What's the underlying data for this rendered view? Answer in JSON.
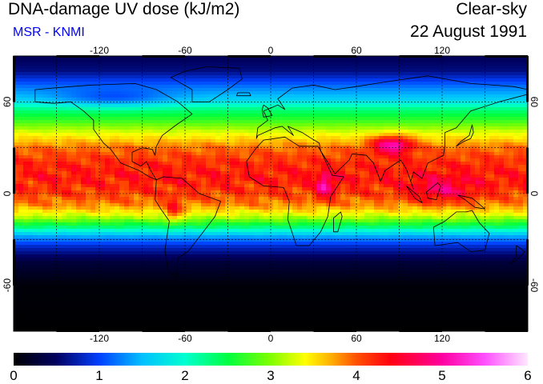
{
  "header": {
    "title": "DNA-damage UV dose (kJ/m2)",
    "subtitle": "MSR - KNMI",
    "condition": "Clear-sky",
    "date": "22 August 1991"
  },
  "colors": {
    "subtitle": "#0000ff",
    "frame": "#000000",
    "graticule": "#000000",
    "coastline": "#000000"
  },
  "map": {
    "projection": "equirectangular",
    "lon_range": [
      -180,
      180
    ],
    "lat_range": [
      -90,
      90
    ],
    "graticule_lons": [
      -150,
      -120,
      -90,
      -60,
      -30,
      0,
      30,
      60,
      90,
      120,
      150
    ],
    "graticule_lats": [
      -30,
      0,
      30,
      60
    ],
    "lon_tick_labels": [
      "-120",
      "-60",
      "0",
      "60",
      "120"
    ],
    "lon_tick_values": [
      -120,
      -60,
      0,
      60,
      120
    ],
    "lat_tick_labels": [
      "60",
      "0",
      "-60"
    ],
    "lat_tick_values": [
      60,
      0,
      -60
    ]
  },
  "colorbar": {
    "min": 0,
    "max": 6,
    "tick_labels": [
      "0",
      "1",
      "2",
      "3",
      "4",
      "5",
      "6"
    ],
    "stops": [
      {
        "v": 0.0,
        "c": "#000000"
      },
      {
        "v": 0.5,
        "c": "#000060"
      },
      {
        "v": 1.0,
        "c": "#0040ff"
      },
      {
        "v": 1.5,
        "c": "#00c0ff"
      },
      {
        "v": 2.0,
        "c": "#00ffd0"
      },
      {
        "v": 2.5,
        "c": "#00ff40"
      },
      {
        "v": 3.0,
        "c": "#80ff00"
      },
      {
        "v": 3.4,
        "c": "#ffff00"
      },
      {
        "v": 3.7,
        "c": "#ffb000"
      },
      {
        "v": 4.0,
        "c": "#ff5000"
      },
      {
        "v": 4.4,
        "c": "#ff0010"
      },
      {
        "v": 5.0,
        "c": "#ff00a0"
      },
      {
        "v": 5.5,
        "c": "#ff50ff"
      },
      {
        "v": 6.0,
        "c": "#ffe8ff"
      }
    ]
  },
  "dose_field": {
    "description_units": "kJ/m2",
    "lat_profile": [
      {
        "lat": 90,
        "v": 0.45
      },
      {
        "lat": 80,
        "v": 0.6
      },
      {
        "lat": 70,
        "v": 1.2
      },
      {
        "lat": 62,
        "v": 1.6
      },
      {
        "lat": 55,
        "v": 2.3
      },
      {
        "lat": 48,
        "v": 2.7
      },
      {
        "lat": 40,
        "v": 3.3
      },
      {
        "lat": 30,
        "v": 3.9
      },
      {
        "lat": 20,
        "v": 4.2
      },
      {
        "lat": 10,
        "v": 4.3
      },
      {
        "lat": 0,
        "v": 4.1
      },
      {
        "lat": -8,
        "v": 3.8
      },
      {
        "lat": -15,
        "v": 3.2
      },
      {
        "lat": -22,
        "v": 2.3
      },
      {
        "lat": -28,
        "v": 1.4
      },
      {
        "lat": -35,
        "v": 0.8
      },
      {
        "lat": -45,
        "v": 0.3
      },
      {
        "lat": -60,
        "v": 0.05
      },
      {
        "lat": -90,
        "v": 0.0
      }
    ]
  }
}
